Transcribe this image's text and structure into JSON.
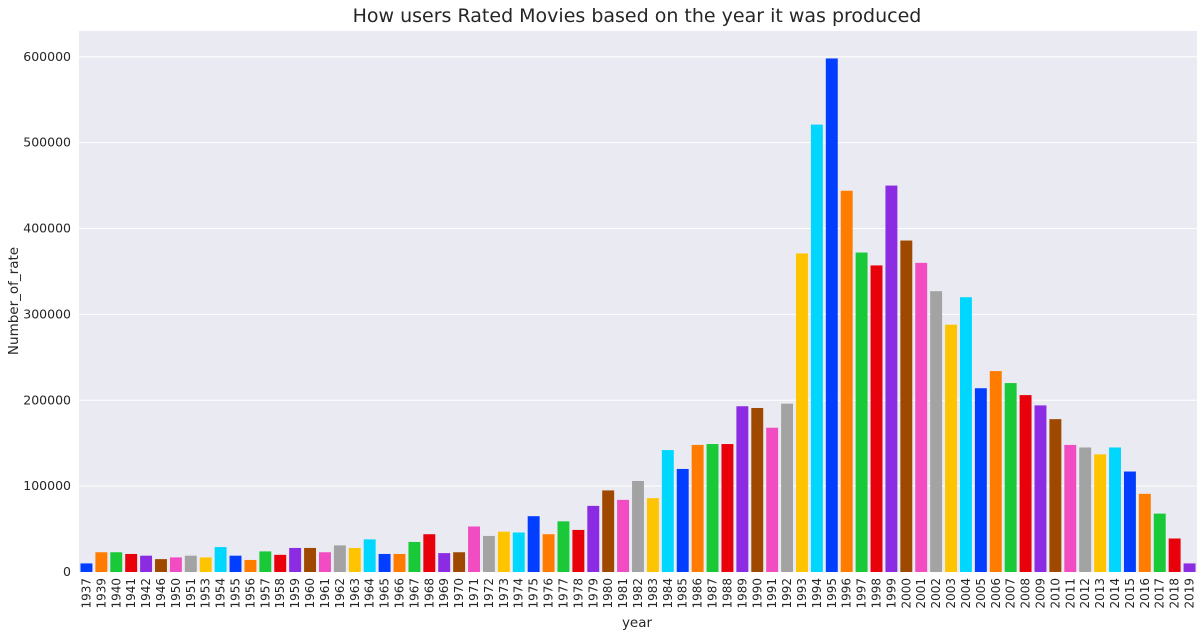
{
  "chart_data": {
    "type": "bar",
    "title": "How users Rated Movies based on the year it was produced",
    "xlabel": "year",
    "ylabel": "Number_of_rate",
    "ylim": [
      0,
      630000
    ],
    "yticks": [
      "0",
      "100000",
      "200000",
      "300000",
      "400000",
      "500000",
      "600000"
    ],
    "ytick_values": [
      0,
      100000,
      200000,
      300000,
      400000,
      500000,
      600000
    ],
    "grid": true,
    "palette": [
      "#023eff",
      "#ff7c00",
      "#1ac938",
      "#e8000b",
      "#8b2be2",
      "#9f4800",
      "#f14cc1",
      "#a3a3a3",
      "#ffc400",
      "#00d7ff"
    ],
    "background": "#eaeaf2",
    "categories": [
      "1937",
      "1939",
      "1940",
      "1941",
      "1942",
      "1946",
      "1950",
      "1951",
      "1953",
      "1954",
      "1955",
      "1956",
      "1957",
      "1958",
      "1959",
      "1960",
      "1961",
      "1962",
      "1963",
      "1964",
      "1965",
      "1966",
      "1967",
      "1968",
      "1969",
      "1970",
      "1971",
      "1972",
      "1973",
      "1974",
      "1975",
      "1976",
      "1977",
      "1978",
      "1979",
      "1980",
      "1981",
      "1982",
      "1983",
      "1984",
      "1985",
      "1986",
      "1987",
      "1988",
      "1989",
      "1990",
      "1991",
      "1992",
      "1993",
      "1994",
      "1995",
      "1996",
      "1997",
      "1998",
      "1999",
      "2000",
      "2001",
      "2002",
      "2003",
      "2004",
      "2005",
      "2006",
      "2007",
      "2008",
      "2009",
      "2010",
      "2011",
      "2012",
      "2013",
      "2014",
      "2015",
      "2016",
      "2017",
      "2018",
      "2019"
    ],
    "values": [
      10000,
      23000,
      23000,
      21000,
      19000,
      15000,
      17000,
      19000,
      17000,
      29000,
      19000,
      14000,
      24000,
      20000,
      28000,
      28000,
      23000,
      31000,
      28000,
      38000,
      21000,
      21000,
      35000,
      44000,
      22000,
      23000,
      53000,
      42000,
      47000,
      46000,
      65000,
      44000,
      59000,
      49000,
      77000,
      95000,
      84000,
      106000,
      86000,
      142000,
      120000,
      148000,
      149000,
      149000,
      193000,
      191000,
      168000,
      196000,
      371000,
      521000,
      598000,
      444000,
      372000,
      357000,
      450000,
      386000,
      360000,
      327000,
      288000,
      320000,
      214000,
      234000,
      220000,
      206000,
      194000,
      178000,
      148000,
      145000,
      137000,
      145000,
      117000,
      91000,
      68000,
      39000,
      10000
    ]
  }
}
